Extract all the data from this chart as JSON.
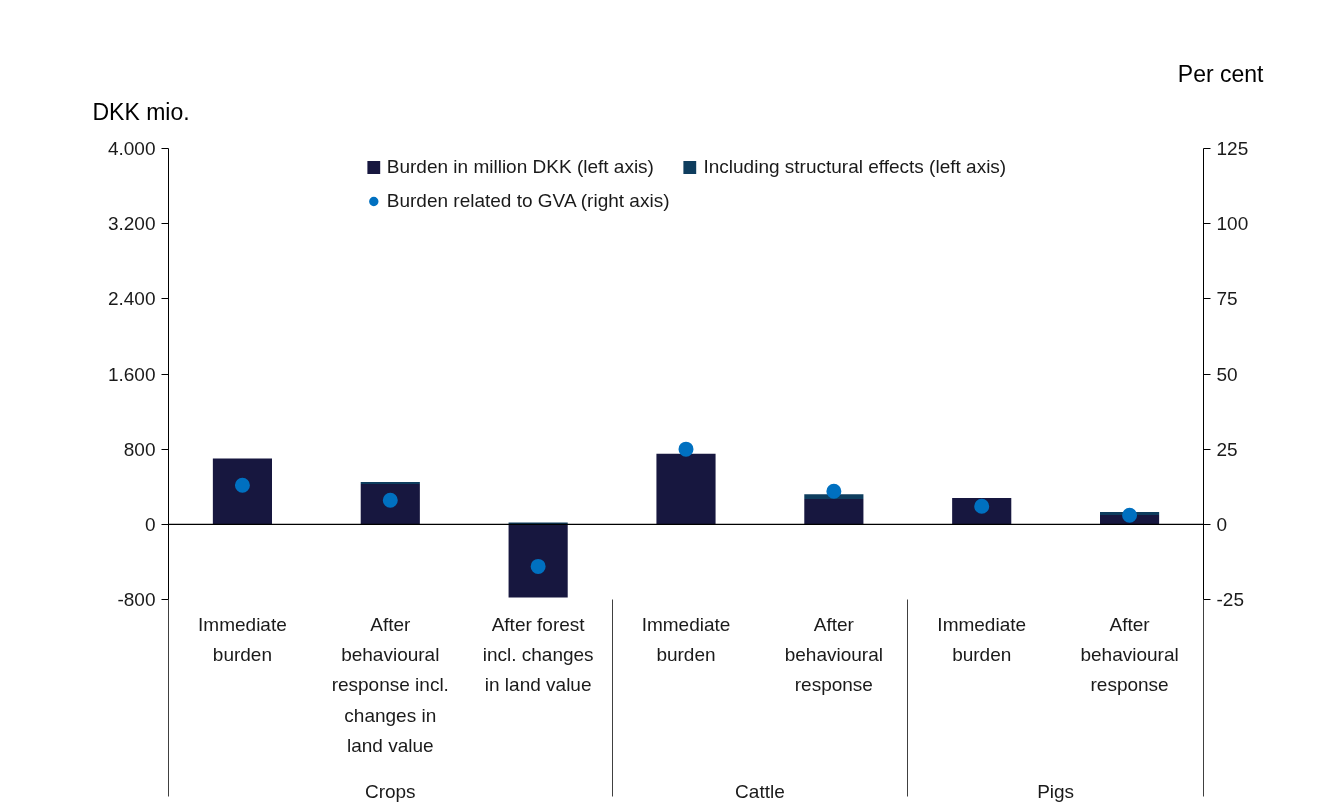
{
  "chart_data": {
    "type": "bar",
    "stacked": true,
    "categories": [
      "Immediate burden",
      "After behavioural response incl. changes in land value",
      "After forest incl. changes in land value",
      "Immediate burden",
      "After behavioural response",
      "Immediate burden",
      "After behavioural response"
    ],
    "series": [
      {
        "name": "Burden in million DKK (left axis)",
        "color": "#17173f",
        "values": [
          700,
          430,
          -780,
          750,
          270,
          280,
          100
        ]
      },
      {
        "name": "Including structural effects (left axis)",
        "color": "#0e3d5e",
        "values": [
          null,
          20,
          20,
          null,
          50,
          null,
          30
        ]
      },
      {
        "name": "Burden related to GVA (right axis)",
        "type": "scatter",
        "axis": "y2",
        "marker": "circle",
        "color": "#0070c0",
        "values": [
          13,
          8,
          -14,
          25,
          11,
          6,
          3
        ]
      }
    ],
    "ylabel": "DKK mio.",
    "y2label": "Per cent",
    "legend": "top",
    "ylim": [
      -800,
      4000
    ],
    "yticks": [
      -800,
      0,
      800,
      {
        "value": 1600,
        "label": "1.600"
      },
      {
        "value": 2400,
        "label": "2.400"
      },
      {
        "value": 3200,
        "label": "3.200"
      },
      {
        "value": 4000,
        "label": "4.000"
      }
    ],
    "y2lim": [
      -25,
      125
    ],
    "y2ticks": [
      -25,
      0,
      25,
      50,
      75,
      100,
      125
    ],
    "annotations": [
      "Crops",
      "Cattle",
      "Pigs"
    ]
  }
}
